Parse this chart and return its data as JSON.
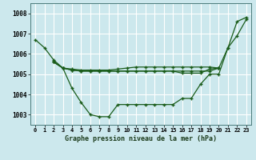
{
  "title": "Graphe pression niveau de la mer (hPa)",
  "bg_color": "#cce8ed",
  "grid_color": "#b0d8e0",
  "line_color": "#1a5c1a",
  "x_labels": [
    "0",
    "1",
    "2",
    "3",
    "4",
    "5",
    "6",
    "7",
    "8",
    "9",
    "10",
    "11",
    "12",
    "13",
    "14",
    "15",
    "16",
    "17",
    "18",
    "19",
    "20",
    "21",
    "22",
    "23"
  ],
  "ylim": [
    1002.5,
    1008.5
  ],
  "yticks": [
    1003,
    1004,
    1005,
    1006,
    1007,
    1008
  ],
  "series": [
    [
      1006.7,
      1006.3,
      1005.7,
      1005.3,
      1004.3,
      1003.6,
      1003.0,
      1002.9,
      1002.9,
      1003.5,
      1003.5,
      1003.5,
      1003.5,
      1003.5,
      1003.5,
      1003.5,
      1003.8,
      1003.8,
      1004.5,
      1005.0,
      1005.0,
      1006.3,
      1006.9,
      1007.7
    ],
    [
      null,
      null,
      1005.6,
      1005.3,
      1005.2,
      1005.15,
      1005.15,
      1005.15,
      1005.15,
      1005.15,
      1005.15,
      1005.15,
      1005.15,
      1005.15,
      1005.15,
      1005.15,
      1005.15,
      1005.15,
      1005.15,
      1005.15,
      1005.3,
      null,
      null,
      null
    ],
    [
      null,
      null,
      1005.6,
      1005.3,
      1005.25,
      1005.2,
      1005.2,
      1005.2,
      1005.2,
      1005.25,
      1005.3,
      1005.35,
      1005.35,
      1005.35,
      1005.35,
      1005.35,
      1005.35,
      1005.35,
      1005.35,
      1005.35,
      1005.3,
      1006.3,
      1007.6,
      1007.8
    ],
    [
      null,
      null,
      1005.6,
      1005.3,
      1005.2,
      1005.15,
      1005.15,
      1005.15,
      1005.15,
      1005.15,
      1005.15,
      1005.15,
      1005.15,
      1005.15,
      1005.15,
      1005.15,
      1005.05,
      1005.05,
      1005.05,
      1005.25,
      1005.3,
      null,
      null,
      null
    ]
  ]
}
